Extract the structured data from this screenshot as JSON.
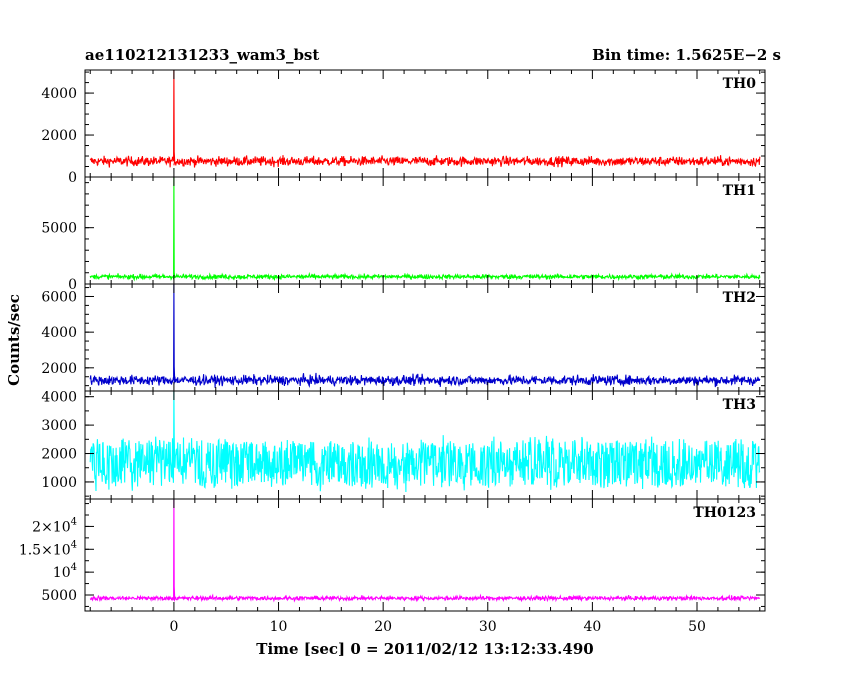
{
  "chart_data": {
    "type": "line",
    "title": "ae110212131233_wam3_bst",
    "bin_time_label": "Bin time: 1.5625E−2 s",
    "xlabel": "Time [sec] 0 = 2011/02/12 13:12:33.490",
    "ylabel": "Counts/sec",
    "xlim": [
      -8.5,
      56.5
    ],
    "x_ticks": [
      0,
      10,
      20,
      30,
      40,
      50
    ],
    "x_minor_step": 2,
    "data_x_range": [
      -8.0,
      56.0
    ],
    "burst_time": 0.0,
    "panels": [
      {
        "name": "TH0",
        "color": "#ff0000",
        "ylim": [
          0,
          5100
        ],
        "y_ticks": [
          {
            "v": 0,
            "label": "0"
          },
          {
            "v": 2000,
            "label": "2000"
          },
          {
            "v": 4000,
            "label": "4000"
          }
        ],
        "y_minor_step": 500,
        "baseline_mean": 750,
        "baseline_spread": 450,
        "peak": 5100
      },
      {
        "name": "TH1",
        "color": "#00ff00",
        "ylim": [
          0,
          9500
        ],
        "y_ticks": [
          {
            "v": 0,
            "label": "0"
          },
          {
            "v": 5000,
            "label": "5000"
          }
        ],
        "y_minor_step": 1000,
        "baseline_mean": 650,
        "baseline_spread": 400,
        "peak": 9500
      },
      {
        "name": "TH2",
        "color": "#0000cc",
        "ylim": [
          700,
          6700
        ],
        "y_ticks": [
          {
            "v": 2000,
            "label": "2000"
          },
          {
            "v": 4000,
            "label": "4000"
          },
          {
            "v": 6000,
            "label": "6000"
          }
        ],
        "y_minor_step": 500,
        "baseline_mean": 1300,
        "baseline_spread": 550,
        "peak": 6700
      },
      {
        "name": "TH3",
        "color": "#00ffff",
        "ylim": [
          400,
          4200
        ],
        "y_ticks": [
          {
            "v": 1000,
            "label": "1000"
          },
          {
            "v": 2000,
            "label": "2000"
          },
          {
            "v": 3000,
            "label": "3000"
          },
          {
            "v": 4000,
            "label": "4000"
          }
        ],
        "y_minor_step": 500,
        "baseline_mean": 1650,
        "baseline_spread": 850,
        "peak": 4200
      },
      {
        "name": "TH0123",
        "color": "#ff00ff",
        "ylim": [
          1500,
          26000
        ],
        "y_ticks": [
          {
            "v": 5000,
            "label": "5000"
          },
          {
            "v": 10000,
            "label": "10",
            "exp": "4"
          },
          {
            "v": 15000,
            "label": "1.5×10",
            "exp": "4"
          },
          {
            "v": 20000,
            "label": "2×10",
            "exp": "4"
          }
        ],
        "y_minor_step": 2500,
        "baseline_mean": 4300,
        "baseline_spread": 900,
        "peak": 26000
      }
    ]
  }
}
